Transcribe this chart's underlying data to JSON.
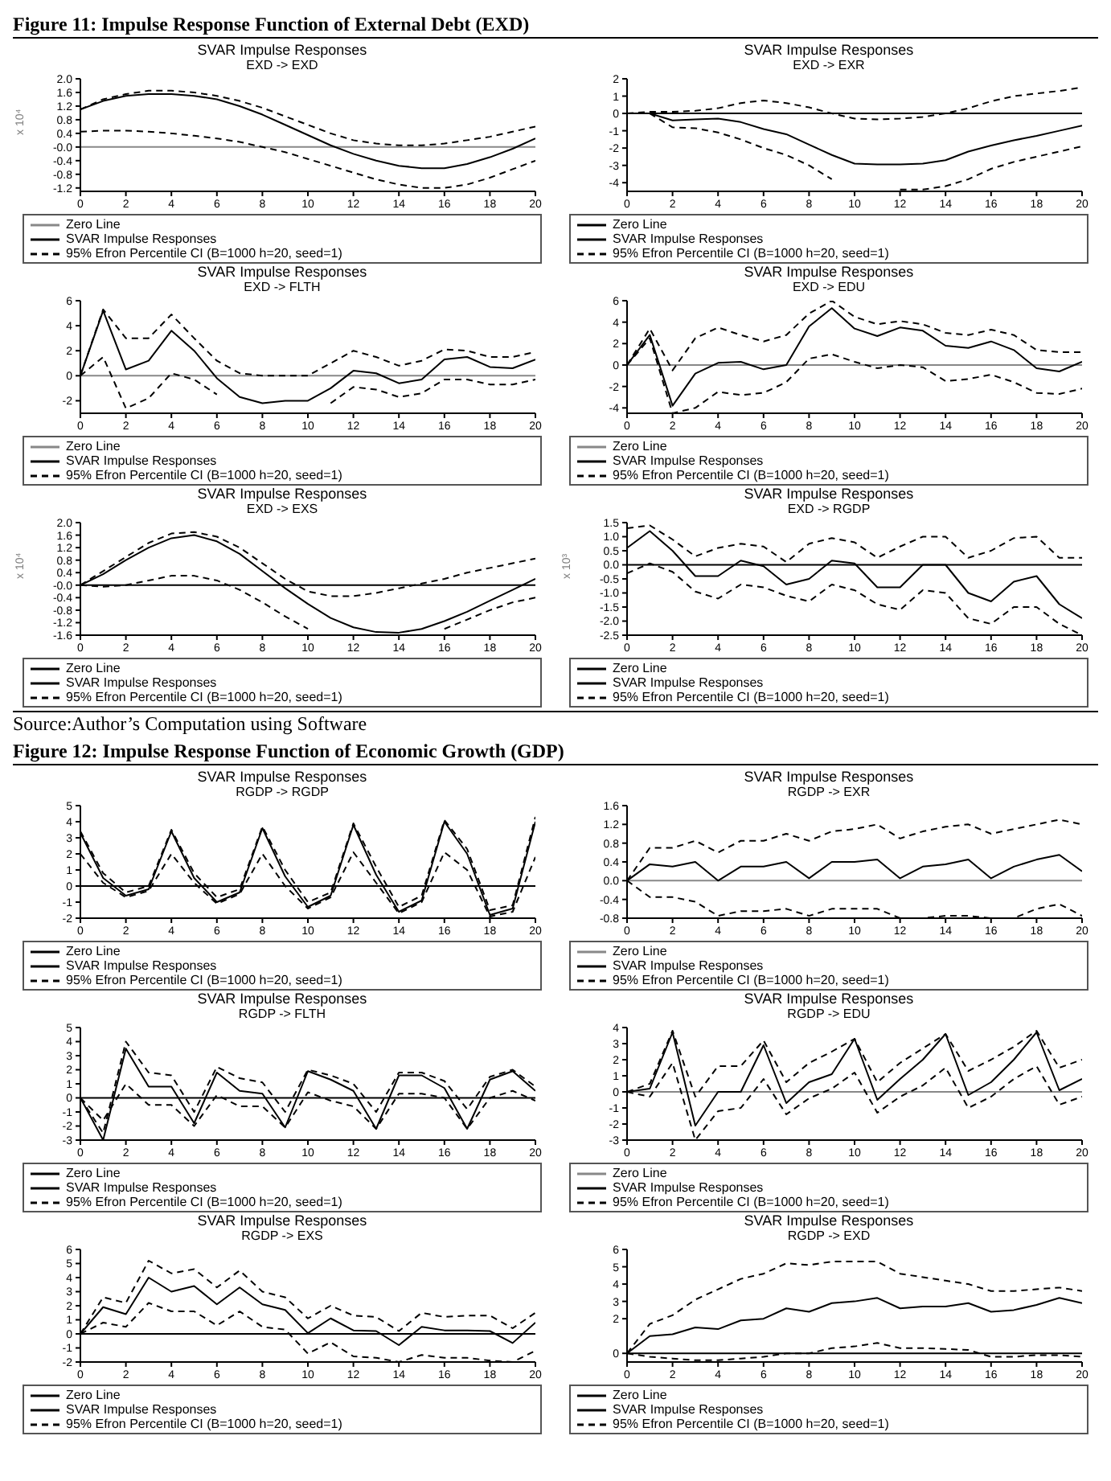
{
  "chart_data": [
    {
      "type": "line",
      "title": "SVAR Impulse Responses",
      "subtitle": "EXD -> EXD",
      "ylabel": "x 10⁴",
      "annotations": [
        "Figure 11: Impulse Response Function of External Debt (EXD)"
      ],
      "x": [
        0,
        1,
        2,
        3,
        4,
        5,
        6,
        7,
        8,
        9,
        10,
        11,
        12,
        13,
        14,
        15,
        16,
        17,
        18,
        19,
        20
      ],
      "xlim": [
        0,
        20
      ],
      "xticks": [
        0,
        2,
        4,
        6,
        8,
        10,
        12,
        14,
        16,
        18,
        20
      ],
      "ylim": [
        -1.3,
        2.0
      ],
      "yticks": [
        {
          "value": 2.0,
          "label": "2.0"
        },
        {
          "value": 1.6,
          "label": "1.6"
        },
        {
          "value": 1.2,
          "label": "1.2"
        },
        {
          "value": 0.8,
          "label": "0.8"
        },
        {
          "value": 0.4,
          "label": "0.4"
        },
        {
          "value": 0,
          "label": "-0.0"
        },
        {
          "value": -0.4,
          "label": "-0.4"
        },
        {
          "value": -0.8,
          "label": "-0.8"
        },
        {
          "value": -1.2,
          "label": "-1.2"
        }
      ],
      "legend": "bottom",
      "marker": "none",
      "ref_lines": [
        {
          "axis": "y",
          "value": 0,
          "label": "Zero Line",
          "color": "#888888"
        }
      ],
      "series": [
        {
          "name": "SVAR Impulse Responses",
          "color": "#000000",
          "line_style": "solid",
          "values": [
            1.1,
            1.35,
            1.5,
            1.55,
            1.55,
            1.5,
            1.4,
            1.2,
            0.95,
            0.65,
            0.35,
            0.05,
            -0.2,
            -0.4,
            -0.55,
            -0.62,
            -0.62,
            -0.5,
            -0.3,
            -0.05,
            0.25
          ]
        },
        {
          "name": "95% Efron Percentile CI (B=1000 h=20, seed=1)",
          "color": "#000000",
          "line_style": "dashed",
          "values": [
            0.45,
            0.48,
            0.48,
            0.45,
            0.4,
            0.33,
            0.25,
            0.15,
            0.0,
            -0.15,
            -0.35,
            -0.55,
            -0.75,
            -0.95,
            -1.1,
            -1.2,
            -1.2,
            -1.1,
            -0.9,
            -0.65,
            -0.4
          ]
        },
        {
          "color": "#000000",
          "line_style": "dashed",
          "values": [
            1.1,
            1.4,
            1.55,
            1.65,
            1.65,
            1.6,
            1.5,
            1.35,
            1.15,
            0.9,
            0.65,
            0.4,
            0.2,
            0.1,
            0.05,
            0.05,
            0.1,
            0.2,
            0.3,
            0.45,
            0.6
          ]
        }
      ]
    },
    {
      "type": "line",
      "title": "SVAR Impulse Responses",
      "subtitle": "EXD -> EXR",
      "x": [
        0,
        1,
        2,
        3,
        4,
        5,
        6,
        7,
        8,
        9,
        10,
        11,
        12,
        13,
        14,
        15,
        16,
        17,
        18,
        19,
        20
      ],
      "xlim": [
        0,
        20
      ],
      "xticks": [
        0,
        2,
        4,
        6,
        8,
        10,
        12,
        14,
        16,
        18,
        20
      ],
      "ylim": [
        -4.5,
        2
      ],
      "yticks": [
        2,
        1,
        0,
        -1,
        -2,
        -3,
        -4
      ],
      "legend": "bottom",
      "marker": "none",
      "ref_lines": [
        {
          "axis": "y",
          "value": 0,
          "label": "Zero Line",
          "color": "#000000"
        }
      ],
      "series": [
        {
          "name": "SVAR Impulse Responses",
          "color": "#000000",
          "line_style": "solid",
          "values": [
            0,
            0,
            -0.4,
            -0.35,
            -0.3,
            -0.5,
            -0.9,
            -1.2,
            -1.8,
            -2.4,
            -2.9,
            -2.95,
            -2.95,
            -2.9,
            -2.7,
            -2.2,
            -1.85,
            -1.55,
            -1.3,
            -1.0,
            -0.7
          ]
        },
        {
          "name": "95% Efron Percentile CI (B=1000 h=20, seed=1)",
          "color": "#000000",
          "line_style": "dashed",
          "values": [
            0,
            0,
            -0.8,
            -0.85,
            -1.1,
            -1.5,
            -2.0,
            -2.4,
            -3.0,
            -3.8,
            null,
            null,
            -4.4,
            -4.4,
            -4.2,
            -3.8,
            -3.2,
            -2.8,
            -2.5,
            -2.2,
            -1.9
          ]
        },
        {
          "color": "#000000",
          "line_style": "dashed",
          "values": [
            0,
            0.1,
            0.1,
            0.15,
            0.3,
            0.6,
            0.75,
            0.6,
            0.35,
            0.0,
            -0.3,
            -0.35,
            -0.3,
            -0.2,
            0.0,
            0.3,
            0.7,
            1.0,
            1.15,
            1.3,
            1.5
          ]
        }
      ]
    },
    {
      "type": "line",
      "title": "SVAR Impulse Responses",
      "subtitle": "EXD -> FLTH",
      "x": [
        0,
        1,
        2,
        3,
        4,
        5,
        6,
        7,
        8,
        9,
        10,
        11,
        12,
        13,
        14,
        15,
        16,
        17,
        18,
        19,
        20
      ],
      "xlim": [
        0,
        20
      ],
      "xticks": [
        0,
        2,
        4,
        6,
        8,
        10,
        12,
        14,
        16,
        18,
        20
      ],
      "ylim": [
        -3,
        6
      ],
      "yticks": [
        6,
        4,
        2,
        0,
        -2
      ],
      "legend": "bottom",
      "marker": "none",
      "ref_lines": [
        {
          "axis": "y",
          "value": 0,
          "label": "Zero Line",
          "color": "#888888"
        }
      ],
      "series": [
        {
          "name": "SVAR Impulse Responses",
          "color": "#000000",
          "line_style": "solid",
          "values": [
            0,
            5.2,
            0.5,
            1.2,
            3.6,
            2.0,
            -0.2,
            -1.7,
            -2.2,
            -2.0,
            -2.0,
            -1.0,
            0.4,
            0.2,
            -0.6,
            -0.3,
            1.3,
            1.5,
            0.7,
            0.6,
            1.3
          ]
        },
        {
          "name": "95% Efron Percentile CI (B=1000 h=20, seed=1)",
          "color": "#000000",
          "line_style": "dashed",
          "values": [
            0,
            1.5,
            -2.6,
            -1.8,
            0.2,
            -0.3,
            -1.5,
            null,
            null,
            null,
            null,
            -2.2,
            -0.9,
            -1.1,
            -1.7,
            -1.4,
            -0.3,
            -0.3,
            -0.7,
            -0.7,
            -0.3
          ]
        },
        {
          "color": "#000000",
          "line_style": "dashed",
          "values": [
            0,
            5.3,
            3.0,
            3.0,
            4.9,
            3.0,
            1.2,
            0.2,
            0,
            0,
            0,
            1.0,
            2.0,
            1.5,
            0.8,
            1.2,
            2.1,
            2.0,
            1.5,
            1.5,
            1.9
          ]
        }
      ]
    },
    {
      "type": "line",
      "title": "SVAR Impulse Responses",
      "subtitle": "EXD -> EDU",
      "x": [
        0,
        1,
        2,
        3,
        4,
        5,
        6,
        7,
        8,
        9,
        10,
        11,
        12,
        13,
        14,
        15,
        16,
        17,
        18,
        19,
        20
      ],
      "xlim": [
        0,
        20
      ],
      "xticks": [
        0,
        2,
        4,
        6,
        8,
        10,
        12,
        14,
        16,
        18,
        20
      ],
      "ylim": [
        -4.5,
        6
      ],
      "yticks": [
        6,
        4,
        2,
        0,
        -2,
        -4
      ],
      "legend": "bottom",
      "marker": "none",
      "ref_lines": [
        {
          "axis": "y",
          "value": 0,
          "label": "Zero Line",
          "color": "#888888"
        }
      ],
      "series": [
        {
          "name": "SVAR Impulse Responses",
          "color": "#000000",
          "line_style": "solid",
          "values": [
            0,
            2.8,
            -3.8,
            -0.8,
            0.2,
            0.3,
            -0.4,
            0.0,
            3.6,
            5.3,
            3.4,
            2.7,
            3.5,
            3.2,
            1.8,
            1.6,
            2.2,
            1.4,
            -0.3,
            -0.6,
            0.3
          ]
        },
        {
          "name": "95% Efron Percentile CI (B=1000 h=20, seed=1)",
          "color": "#000000",
          "line_style": "dashed",
          "values": [
            0,
            2.5,
            -4.5,
            -4.0,
            -2.5,
            -2.8,
            -2.6,
            -1.6,
            0.6,
            1.0,
            0.3,
            -0.3,
            0.0,
            -0.2,
            -1.5,
            -1.3,
            -0.9,
            -1.6,
            -2.6,
            -2.7,
            -2.2
          ]
        },
        {
          "color": "#000000",
          "line_style": "dashed",
          "values": [
            0,
            3.4,
            -0.5,
            2.5,
            3.5,
            2.8,
            2.2,
            2.8,
            4.8,
            6.0,
            4.5,
            3.8,
            4.1,
            3.8,
            3.0,
            2.8,
            3.3,
            2.8,
            1.4,
            1.2,
            1.2
          ]
        }
      ]
    },
    {
      "type": "line",
      "title": "SVAR Impulse Responses",
      "subtitle": "EXD -> EXS",
      "ylabel": "x 10⁴",
      "x": [
        0,
        1,
        2,
        3,
        4,
        5,
        6,
        7,
        8,
        9,
        10,
        11,
        12,
        13,
        14,
        15,
        16,
        17,
        18,
        19,
        20
      ],
      "xlim": [
        0,
        20
      ],
      "xticks": [
        0,
        2,
        4,
        6,
        8,
        10,
        12,
        14,
        16,
        18,
        20
      ],
      "ylim": [
        -1.6,
        2.0
      ],
      "yticks": [
        {
          "value": 2.0,
          "label": "2.0"
        },
        {
          "value": 1.6,
          "label": "1.6"
        },
        {
          "value": 1.2,
          "label": "1.2"
        },
        {
          "value": 0.8,
          "label": "0.8"
        },
        {
          "value": 0.4,
          "label": "0.4"
        },
        {
          "value": 0,
          "label": "-0.0"
        },
        {
          "value": -0.4,
          "label": "-0.4"
        },
        {
          "value": -0.8,
          "label": "-0.8"
        },
        {
          "value": -1.2,
          "label": "-1.2"
        },
        {
          "value": -1.6,
          "label": "-1.6"
        }
      ],
      "legend": "bottom",
      "marker": "none",
      "ref_lines": [
        {
          "axis": "y",
          "value": 0,
          "label": "Zero Line",
          "color": "#000000"
        }
      ],
      "series": [
        {
          "name": "SVAR Impulse Responses",
          "color": "#000000",
          "line_style": "solid",
          "values": [
            0,
            0.35,
            0.8,
            1.2,
            1.5,
            1.6,
            1.4,
            1.0,
            0.45,
            -0.1,
            -0.6,
            -1.05,
            -1.35,
            -1.5,
            -1.52,
            -1.4,
            -1.15,
            -0.85,
            -0.5,
            -0.15,
            0.2
          ]
        },
        {
          "name": "95% Efron Percentile CI (B=1000 h=20, seed=1)",
          "color": "#000000",
          "line_style": "dashed",
          "values": [
            0,
            -0.05,
            0,
            0.15,
            0.3,
            0.3,
            0.15,
            -0.15,
            -0.55,
            -1.0,
            -1.4,
            null,
            null,
            null,
            null,
            null,
            -1.4,
            -1.1,
            -0.8,
            -0.55,
            -0.4
          ]
        },
        {
          "color": "#000000",
          "line_style": "dashed",
          "values": [
            0,
            0.45,
            0.9,
            1.35,
            1.65,
            1.7,
            1.55,
            1.2,
            0.7,
            0.2,
            -0.2,
            -0.35,
            -0.35,
            -0.25,
            -0.1,
            0.05,
            0.2,
            0.4,
            0.55,
            0.7,
            0.85
          ]
        }
      ]
    },
    {
      "type": "line",
      "title": "SVAR Impulse Responses",
      "subtitle": "EXD -> RGDP",
      "ylabel": "x 10³",
      "annotations": [
        "Source:Author’s Computation using Software"
      ],
      "x": [
        0,
        1,
        2,
        3,
        4,
        5,
        6,
        7,
        8,
        9,
        10,
        11,
        12,
        13,
        14,
        15,
        16,
        17,
        18,
        19,
        20
      ],
      "xlim": [
        0,
        20
      ],
      "xticks": [
        0,
        2,
        4,
        6,
        8,
        10,
        12,
        14,
        16,
        18,
        20
      ],
      "ylim": [
        -2.5,
        1.5
      ],
      "yticks": [
        {
          "value": 1.5,
          "label": "1.5"
        },
        {
          "value": 1.0,
          "label": "1.0"
        },
        {
          "value": 0.5,
          "label": "0.5"
        },
        {
          "value": 0,
          "label": "0.0"
        },
        {
          "value": -0.5,
          "label": "-0.5"
        },
        {
          "value": -1.0,
          "label": "-1.0"
        },
        {
          "value": -1.5,
          "label": "-1.5"
        },
        {
          "value": -2.0,
          "label": "-2.0"
        },
        {
          "value": -2.5,
          "label": "-2.5"
        }
      ],
      "legend": "bottom",
      "marker": "none",
      "ref_lines": [
        {
          "axis": "y",
          "value": 0,
          "label": "Zero Line",
          "color": "#000000"
        }
      ],
      "series": [
        {
          "name": "SVAR Impulse Responses",
          "color": "#000000",
          "line_style": "solid",
          "values": [
            0.6,
            1.2,
            0.5,
            -0.4,
            -0.4,
            0.15,
            -0.05,
            -0.7,
            -0.5,
            0.15,
            0.05,
            -0.8,
            -0.8,
            0.0,
            0.0,
            -1.0,
            -1.3,
            -0.6,
            -0.4,
            -1.4,
            -1.9
          ]
        },
        {
          "name": "95% Efron Percentile CI (B=1000 h=20, seed=1)",
          "color": "#000000",
          "line_style": "dashed",
          "values": [
            -0.3,
            0.05,
            -0.25,
            -0.95,
            -1.2,
            -0.7,
            -0.8,
            -1.1,
            -1.3,
            -0.7,
            -0.9,
            -1.4,
            -1.6,
            -0.9,
            -1.0,
            -1.9,
            -2.1,
            -1.5,
            -1.5,
            -2.1,
            -2.5
          ]
        },
        {
          "color": "#000000",
          "line_style": "dashed",
          "values": [
            1.3,
            1.4,
            0.9,
            0.3,
            0.6,
            0.75,
            0.65,
            0.1,
            0.75,
            0.95,
            0.8,
            0.25,
            0.65,
            1.0,
            1.0,
            0.25,
            0.5,
            0.95,
            1.0,
            0.25,
            0.25
          ]
        }
      ]
    },
    {
      "type": "line",
      "title": "SVAR Impulse Responses",
      "subtitle": "RGDP -> RGDP",
      "annotations": [
        "Figure 12: Impulse Response Function of Economic Growth (GDP)"
      ],
      "x": [
        0,
        1,
        2,
        3,
        4,
        5,
        6,
        7,
        8,
        9,
        10,
        11,
        12,
        13,
        14,
        15,
        16,
        17,
        18,
        19,
        20
      ],
      "xlim": [
        0,
        20
      ],
      "xticks": [
        0,
        2,
        4,
        6,
        8,
        10,
        12,
        14,
        16,
        18,
        20
      ],
      "ylim": [
        -2,
        5
      ],
      "yticks": [
        5,
        4,
        3,
        2,
        1,
        0,
        -1,
        -2
      ],
      "legend": "bottom",
      "marker": "none",
      "ref_lines": [
        {
          "axis": "y",
          "value": 0,
          "label": "Zero Line",
          "color": "#000000"
        }
      ],
      "series": [
        {
          "name": "SVAR Impulse Responses",
          "color": "#000000",
          "line_style": "solid",
          "values": [
            3.3,
            0.5,
            -0.6,
            -0.2,
            3.4,
            0.5,
            -1.0,
            -0.4,
            3.6,
            0.6,
            -1.3,
            -0.6,
            3.8,
            0.7,
            -1.6,
            -0.9,
            4.0,
            2.0,
            -1.8,
            -1.4,
            4.0
          ]
        },
        {
          "name": "95% Efron Percentile CI (B=1000 h=20, seed=1)",
          "color": "#000000",
          "line_style": "dashed",
          "values": [
            2.0,
            0.2,
            -0.7,
            -0.3,
            2.0,
            0.2,
            -1.1,
            -0.5,
            2.0,
            0.0,
            -1.4,
            -0.7,
            2.1,
            0.2,
            -1.7,
            -1.0,
            2.1,
            1.0,
            -1.9,
            -1.6,
            1.8
          ]
        },
        {
          "color": "#000000",
          "line_style": "dashed",
          "values": [
            3.4,
            0.8,
            -0.4,
            0.0,
            3.5,
            0.8,
            -0.7,
            -0.2,
            3.7,
            1.0,
            -1.0,
            -0.4,
            3.9,
            1.2,
            -1.3,
            -0.6,
            4.1,
            2.3,
            -1.5,
            -1.2,
            4.3
          ]
        }
      ]
    },
    {
      "type": "line",
      "title": "SVAR Impulse Responses",
      "subtitle": "RGDP -> EXR",
      "x": [
        0,
        1,
        2,
        3,
        4,
        5,
        6,
        7,
        8,
        9,
        10,
        11,
        12,
        13,
        14,
        15,
        16,
        17,
        18,
        19,
        20
      ],
      "xlim": [
        0,
        20
      ],
      "xticks": [
        0,
        2,
        4,
        6,
        8,
        10,
        12,
        14,
        16,
        18,
        20
      ],
      "ylim": [
        -0.8,
        1.6
      ],
      "yticks": [
        {
          "value": 1.6,
          "label": "1.6"
        },
        {
          "value": 1.2,
          "label": "1.2"
        },
        {
          "value": 0.8,
          "label": "0.8"
        },
        {
          "value": 0.4,
          "label": "0.4"
        },
        {
          "value": 0,
          "label": "0.0"
        },
        {
          "value": -0.4,
          "label": "-0.4"
        },
        {
          "value": -0.8,
          "label": "-0.8"
        }
      ],
      "legend": "bottom",
      "marker": "none",
      "ref_lines": [
        {
          "axis": "y",
          "value": 0,
          "label": "Zero Line",
          "color": "#888888"
        }
      ],
      "series": [
        {
          "name": "SVAR Impulse Responses",
          "color": "#000000",
          "line_style": "solid",
          "values": [
            0,
            0.35,
            0.3,
            0.4,
            0.0,
            0.3,
            0.3,
            0.4,
            0.05,
            0.4,
            0.4,
            0.45,
            0.05,
            0.3,
            0.35,
            0.45,
            0.05,
            0.3,
            0.45,
            0.55,
            0.2
          ]
        },
        {
          "name": "95% Efron Percentile CI (B=1000 h=20, seed=1)",
          "color": "#000000",
          "line_style": "dashed",
          "values": [
            0,
            -0.35,
            -0.35,
            -0.45,
            -0.75,
            -0.65,
            -0.65,
            -0.6,
            -0.75,
            -0.6,
            -0.6,
            -0.6,
            -0.8,
            -0.8,
            -0.75,
            -0.75,
            -0.8,
            -0.8,
            -0.6,
            -0.5,
            -0.75
          ]
        },
        {
          "color": "#000000",
          "line_style": "dashed",
          "values": [
            0,
            0.7,
            0.7,
            0.85,
            0.6,
            0.85,
            0.85,
            1.0,
            0.85,
            1.05,
            1.1,
            1.2,
            0.9,
            1.05,
            1.15,
            1.2,
            1.0,
            1.1,
            1.2,
            1.3,
            1.2
          ]
        }
      ]
    },
    {
      "type": "line",
      "title": "SVAR Impulse Responses",
      "subtitle": "RGDP -> FLTH",
      "x": [
        0,
        1,
        2,
        3,
        4,
        5,
        6,
        7,
        8,
        9,
        10,
        11,
        12,
        13,
        14,
        15,
        16,
        17,
        18,
        19,
        20
      ],
      "xlim": [
        0,
        20
      ],
      "xticks": [
        0,
        2,
        4,
        6,
        8,
        10,
        12,
        14,
        16,
        18,
        20
      ],
      "ylim": [
        -3,
        5
      ],
      "yticks": [
        5,
        4,
        3,
        2,
        1,
        0,
        -1,
        -2,
        -3
      ],
      "legend": "bottom",
      "marker": "none",
      "ref_lines": [
        {
          "axis": "y",
          "value": 0,
          "label": "Zero Line",
          "color": "#000000"
        }
      ],
      "series": [
        {
          "name": "SVAR Impulse Responses",
          "color": "#000000",
          "line_style": "solid",
          "values": [
            0,
            -3.0,
            3.5,
            0.8,
            0.8,
            -1.8,
            1.8,
            0.5,
            0.3,
            -2.1,
            1.9,
            1.3,
            0.5,
            -2.2,
            1.6,
            1.6,
            0.7,
            -2.2,
            1.3,
            1.9,
            0.5
          ]
        },
        {
          "name": "95% Efron Percentile CI (B=1000 h=20, seed=1)",
          "color": "#000000",
          "line_style": "dashed",
          "values": [
            0,
            -1.6,
            1.0,
            -0.5,
            -0.5,
            -2.0,
            0.2,
            -0.6,
            -0.6,
            -2.1,
            0.4,
            -0.2,
            -0.6,
            -2.2,
            0.3,
            0.3,
            0.0,
            -2.2,
            0.0,
            0.5,
            -0.2
          ]
        },
        {
          "color": "#000000",
          "line_style": "dashed",
          "values": [
            0,
            -2.5,
            4.0,
            1.8,
            1.6,
            -1.0,
            2.2,
            1.4,
            1.1,
            -1.0,
            2.0,
            1.6,
            1.0,
            -1.0,
            1.8,
            1.8,
            1.2,
            -0.8,
            1.5,
            2.0,
            0.8
          ]
        }
      ]
    },
    {
      "type": "line",
      "title": "SVAR Impulse Responses",
      "subtitle": "RGDP -> EDU",
      "x": [
        0,
        1,
        2,
        3,
        4,
        5,
        6,
        7,
        8,
        9,
        10,
        11,
        12,
        13,
        14,
        15,
        16,
        17,
        18,
        19,
        20
      ],
      "xlim": [
        0,
        20
      ],
      "xticks": [
        0,
        2,
        4,
        6,
        8,
        10,
        12,
        14,
        16,
        18,
        20
      ],
      "ylim": [
        -3,
        4
      ],
      "yticks": [
        4,
        3,
        2,
        1,
        0,
        -1,
        -2,
        -3
      ],
      "legend": "bottom",
      "marker": "none",
      "ref_lines": [
        {
          "axis": "y",
          "value": 0,
          "label": "Zero Line",
          "color": "#888888"
        }
      ],
      "series": [
        {
          "name": "SVAR Impulse Responses",
          "color": "#000000",
          "line_style": "solid",
          "values": [
            0,
            0.2,
            3.7,
            -2.1,
            0,
            0,
            2.9,
            -0.7,
            0.6,
            1.1,
            3.3,
            -0.5,
            0.8,
            2.0,
            3.6,
            -0.2,
            0.6,
            2.0,
            3.7,
            0.1,
            0.8
          ]
        },
        {
          "name": "95% Efron Percentile CI (B=1000 h=20, seed=1)",
          "color": "#000000",
          "line_style": "dashed",
          "values": [
            0,
            -0.3,
            1.8,
            -3.0,
            -1.2,
            -1.0,
            0.8,
            -1.4,
            -0.4,
            0.2,
            1.2,
            -1.3,
            -0.3,
            0.4,
            1.5,
            -1.0,
            -0.3,
            0.8,
            1.6,
            -0.8,
            -0.3
          ]
        },
        {
          "color": "#000000",
          "line_style": "dashed",
          "values": [
            0,
            0.5,
            3.8,
            -0.3,
            1.6,
            1.6,
            3.2,
            0.6,
            1.8,
            2.5,
            3.3,
            0.6,
            1.8,
            2.7,
            3.6,
            1.3,
            2.0,
            2.8,
            3.8,
            1.5,
            2.0
          ]
        }
      ]
    },
    {
      "type": "line",
      "title": "SVAR Impulse Responses",
      "subtitle": "RGDP -> EXS",
      "x": [
        0,
        1,
        2,
        3,
        4,
        5,
        6,
        7,
        8,
        9,
        10,
        11,
        12,
        13,
        14,
        15,
        16,
        17,
        18,
        19,
        20
      ],
      "xlim": [
        0,
        20
      ],
      "xticks": [
        0,
        2,
        4,
        6,
        8,
        10,
        12,
        14,
        16,
        18,
        20
      ],
      "ylim": [
        -2,
        6
      ],
      "yticks": [
        6,
        5,
        4,
        3,
        2,
        1,
        0,
        -1,
        -2
      ],
      "legend": "bottom",
      "marker": "none",
      "ref_lines": [
        {
          "axis": "y",
          "value": 0,
          "label": "Zero Line",
          "color": "#000000"
        }
      ],
      "series": [
        {
          "name": "SVAR Impulse Responses",
          "color": "#000000",
          "line_style": "solid",
          "values": [
            0,
            1.9,
            1.4,
            4.0,
            3.0,
            3.4,
            2.1,
            3.3,
            2.1,
            1.7,
            0.05,
            1.1,
            0.25,
            0.2,
            -0.8,
            0.5,
            0.25,
            0.25,
            0.2,
            -0.65,
            0.8
          ]
        },
        {
          "name": "95% Efron Percentile CI (B=1000 h=20, seed=1)",
          "color": "#000000",
          "line_style": "dashed",
          "values": [
            0,
            0.8,
            0.5,
            2.2,
            1.6,
            1.6,
            0.6,
            1.6,
            0.5,
            0.3,
            -1.4,
            -0.6,
            -1.6,
            -1.7,
            -2.0,
            -1.5,
            -1.7,
            -1.7,
            -1.9,
            -2.0,
            -1.2
          ]
        },
        {
          "color": "#000000",
          "line_style": "dashed",
          "values": [
            0,
            2.6,
            2.2,
            5.2,
            4.3,
            4.6,
            3.3,
            4.5,
            3.0,
            2.6,
            1.1,
            2.0,
            1.3,
            1.2,
            0.2,
            1.5,
            1.2,
            1.3,
            1.3,
            0.4,
            1.5
          ]
        }
      ]
    },
    {
      "type": "line",
      "title": "SVAR Impulse Responses",
      "subtitle": "RGDP -> EXD",
      "x": [
        0,
        1,
        2,
        3,
        4,
        5,
        6,
        7,
        8,
        9,
        10,
        11,
        12,
        13,
        14,
        15,
        16,
        17,
        18,
        19,
        20
      ],
      "xlim": [
        0,
        20
      ],
      "xticks": [
        0,
        2,
        4,
        6,
        8,
        10,
        12,
        14,
        16,
        18,
        20
      ],
      "ylim": [
        -0.5,
        6
      ],
      "yticks": [
        6,
        5,
        4,
        3,
        2,
        0
      ],
      "legend": "bottom",
      "marker": "none",
      "ref_lines": [
        {
          "axis": "y",
          "value": 0,
          "label": "Zero Line",
          "color": "#000000"
        }
      ],
      "series": [
        {
          "name": "SVAR Impulse Responses",
          "color": "#000000",
          "line_style": "solid",
          "values": [
            0,
            1.0,
            1.1,
            1.5,
            1.4,
            1.9,
            2.0,
            2.6,
            2.4,
            2.9,
            3.0,
            3.2,
            2.6,
            2.7,
            2.7,
            2.9,
            2.4,
            2.5,
            2.8,
            3.2,
            2.9
          ]
        },
        {
          "name": "95% Efron Percentile CI (B=1000 h=20, seed=1)",
          "color": "#000000",
          "line_style": "dashed",
          "values": [
            0,
            -0.2,
            -0.3,
            -0.4,
            -0.4,
            -0.3,
            -0.2,
            0.0,
            0.0,
            0.3,
            0.4,
            0.6,
            0.3,
            0.3,
            0.25,
            0.2,
            -0.2,
            -0.2,
            -0.1,
            -0.1,
            -0.2
          ]
        },
        {
          "color": "#000000",
          "line_style": "dashed",
          "values": [
            0,
            1.7,
            2.2,
            3.1,
            3.7,
            4.3,
            4.6,
            5.2,
            5.1,
            5.3,
            5.3,
            5.3,
            4.6,
            4.4,
            4.2,
            4.0,
            3.6,
            3.6,
            3.7,
            3.8,
            3.6
          ]
        }
      ]
    }
  ]
}
